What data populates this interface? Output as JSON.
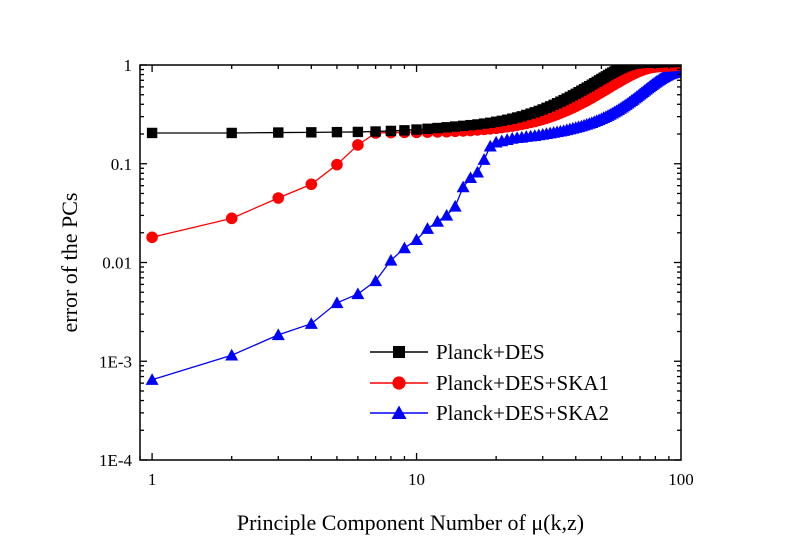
{
  "chart_data": {
    "type": "line",
    "title": "",
    "xlabel": "Principle Component Number of μ(k,z)",
    "ylabel": "error of the PCs",
    "x_scale": "log",
    "y_scale": "log",
    "xlim": [
      0.9,
      100
    ],
    "ylim": [
      0.0001,
      1
    ],
    "x_ticks": [
      {
        "value": 1,
        "label": "1"
      },
      {
        "value": 10,
        "label": "10"
      },
      {
        "value": 100,
        "label": "100"
      }
    ],
    "y_ticks": [
      {
        "value": 0.0001,
        "label": "1E-4"
      },
      {
        "value": 0.001,
        "label": "1E-3"
      },
      {
        "value": 0.01,
        "label": "0.01"
      },
      {
        "value": 0.1,
        "label": "0.1"
      },
      {
        "value": 1,
        "label": "1"
      }
    ],
    "grid": false,
    "legend_position": "bottom-right",
    "x": [
      1,
      2,
      3,
      4,
      5,
      6,
      7,
      8,
      9,
      10,
      11,
      12,
      13,
      14,
      15,
      16,
      17,
      18,
      19,
      20,
      21,
      22,
      23,
      24,
      25,
      26,
      27,
      28,
      29,
      30,
      31,
      32,
      33,
      34,
      35,
      36,
      37,
      38,
      39,
      40,
      41,
      42,
      43,
      44,
      45,
      46,
      47,
      48,
      49,
      50,
      51,
      52,
      53,
      54,
      55,
      56,
      57,
      58,
      59,
      60,
      61,
      62,
      63,
      64,
      65,
      66,
      67,
      68,
      69,
      70,
      71,
      72,
      73,
      74,
      75,
      76,
      77,
      78,
      79,
      80,
      81,
      82,
      83,
      84,
      85,
      86,
      87,
      88,
      89,
      90,
      91,
      92,
      93,
      94,
      95,
      96,
      97,
      98,
      99,
      100
    ],
    "series": [
      {
        "name": "Planck+DES",
        "color": "#000000",
        "marker": "square",
        "values": [
          0.205,
          0.205,
          0.207,
          0.208,
          0.209,
          0.21,
          0.212,
          0.215,
          0.218,
          0.222,
          0.226,
          0.23,
          0.234,
          0.238,
          0.242,
          0.246,
          0.25,
          0.255,
          0.26,
          0.266,
          0.272,
          0.279,
          0.286,
          0.294,
          0.302,
          0.312,
          0.322,
          0.332,
          0.343,
          0.355,
          0.368,
          0.381,
          0.395,
          0.41,
          0.425,
          0.441,
          0.458,
          0.475,
          0.493,
          0.511,
          0.53,
          0.55,
          0.57,
          0.59,
          0.61,
          0.632,
          0.654,
          0.676,
          0.699,
          0.722,
          0.745,
          0.768,
          0.792,
          0.815,
          0.838,
          0.86,
          0.882,
          0.903,
          0.923,
          0.942,
          0.96,
          0.977,
          0.992,
          1.006,
          1.018,
          1.028,
          1.036,
          1.042,
          1.046,
          1.049,
          1.051,
          1.052,
          1.053,
          1.054,
          1.055,
          1.056,
          1.057,
          1.058,
          1.059,
          1.06,
          1.061,
          1.062,
          1.063,
          1.064,
          1.065,
          1.066,
          1.067,
          1.068,
          1.069,
          1.07,
          1.071,
          1.072,
          1.073,
          1.074,
          1.075,
          1.076,
          1.077,
          1.078,
          1.079,
          1.08
        ]
      },
      {
        "name": "Planck+DES+SKA1",
        "color": "#ff0000",
        "marker": "circle",
        "values": [
          0.018,
          0.028,
          0.045,
          0.062,
          0.098,
          0.155,
          0.205,
          0.207,
          0.208,
          0.208,
          0.209,
          0.21,
          0.211,
          0.213,
          0.215,
          0.217,
          0.22,
          0.223,
          0.226,
          0.229,
          0.233,
          0.237,
          0.241,
          0.246,
          0.251,
          0.256,
          0.262,
          0.268,
          0.275,
          0.282,
          0.29,
          0.298,
          0.307,
          0.316,
          0.326,
          0.336,
          0.347,
          0.358,
          0.37,
          0.382,
          0.395,
          0.408,
          0.422,
          0.436,
          0.451,
          0.466,
          0.482,
          0.498,
          0.514,
          0.531,
          0.548,
          0.565,
          0.583,
          0.601,
          0.619,
          0.637,
          0.655,
          0.673,
          0.691,
          0.709,
          0.727,
          0.745,
          0.762,
          0.779,
          0.796,
          0.812,
          0.828,
          0.843,
          0.858,
          0.872,
          0.885,
          0.897,
          0.908,
          0.918,
          0.927,
          0.935,
          0.942,
          0.948,
          0.953,
          0.957,
          0.961,
          0.964,
          0.967,
          0.97,
          0.972,
          0.974,
          0.976,
          0.978,
          0.98,
          0.982,
          0.984,
          0.986,
          0.988,
          0.99,
          0.992,
          0.994,
          0.996,
          0.998,
          1.0,
          1.0
        ]
      },
      {
        "name": "Planck+DES+SKA2",
        "color": "#0000ff",
        "marker": "triangle",
        "values": [
          0.00065,
          0.00115,
          0.00185,
          0.0024,
          0.0039,
          0.0048,
          0.0065,
          0.0105,
          0.014,
          0.017,
          0.022,
          0.026,
          0.03,
          0.037,
          0.058,
          0.072,
          0.082,
          0.11,
          0.15,
          0.165,
          0.17,
          0.175,
          0.18,
          0.183,
          0.185,
          0.188,
          0.19,
          0.192,
          0.195,
          0.198,
          0.201,
          0.204,
          0.207,
          0.21,
          0.213,
          0.216,
          0.22,
          0.224,
          0.228,
          0.232,
          0.236,
          0.24,
          0.245,
          0.25,
          0.255,
          0.26,
          0.266,
          0.272,
          0.278,
          0.285,
          0.292,
          0.299,
          0.307,
          0.315,
          0.324,
          0.333,
          0.342,
          0.352,
          0.362,
          0.373,
          0.384,
          0.396,
          0.408,
          0.421,
          0.434,
          0.447,
          0.461,
          0.475,
          0.49,
          0.505,
          0.52,
          0.536,
          0.552,
          0.568,
          0.584,
          0.6,
          0.616,
          0.632,
          0.648,
          0.664,
          0.68,
          0.695,
          0.71,
          0.725,
          0.739,
          0.753,
          0.766,
          0.779,
          0.791,
          0.802,
          0.812,
          0.821,
          0.829,
          0.836,
          0.842,
          0.847,
          0.851,
          0.854,
          0.857,
          0.86
        ]
      }
    ]
  }
}
